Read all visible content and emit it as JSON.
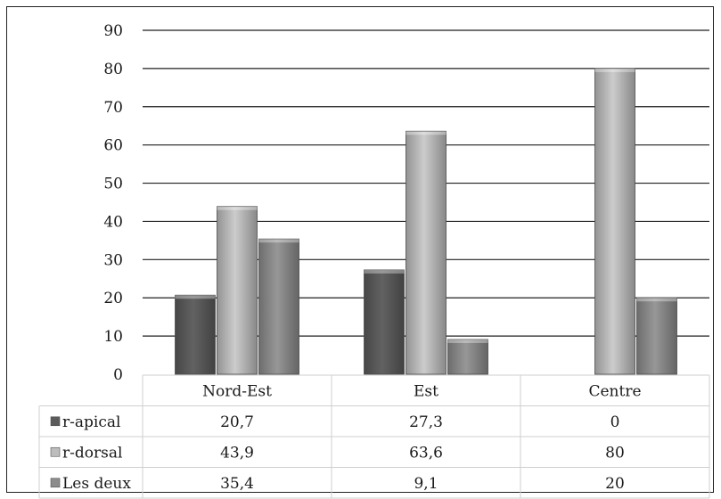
{
  "chart_data": {
    "type": "bar",
    "title": "",
    "xlabel": "",
    "ylabel": "",
    "categories": [
      "Nord-Est",
      "Est",
      "Centre"
    ],
    "series": [
      {
        "name": "r-apical",
        "values": [
          20.7,
          27.3,
          0
        ],
        "labels": [
          "20,7",
          "27,3",
          "0"
        ],
        "color": "#5b5b5b"
      },
      {
        "name": "r-dorsal",
        "values": [
          43.9,
          63.6,
          80
        ],
        "labels": [
          "43,9",
          "63,6",
          "80"
        ],
        "color": "#bdbdbd"
      },
      {
        "name": "Les deux",
        "values": [
          35.4,
          9.1,
          20
        ],
        "labels": [
          "35,4",
          "9,1",
          "20"
        ],
        "color": "#8c8c8c"
      }
    ],
    "ylim": [
      0,
      90
    ],
    "yticks": [
      0,
      10,
      20,
      30,
      40,
      50,
      60,
      70,
      80,
      90
    ],
    "grid": true,
    "legend": "data table below chart"
  }
}
